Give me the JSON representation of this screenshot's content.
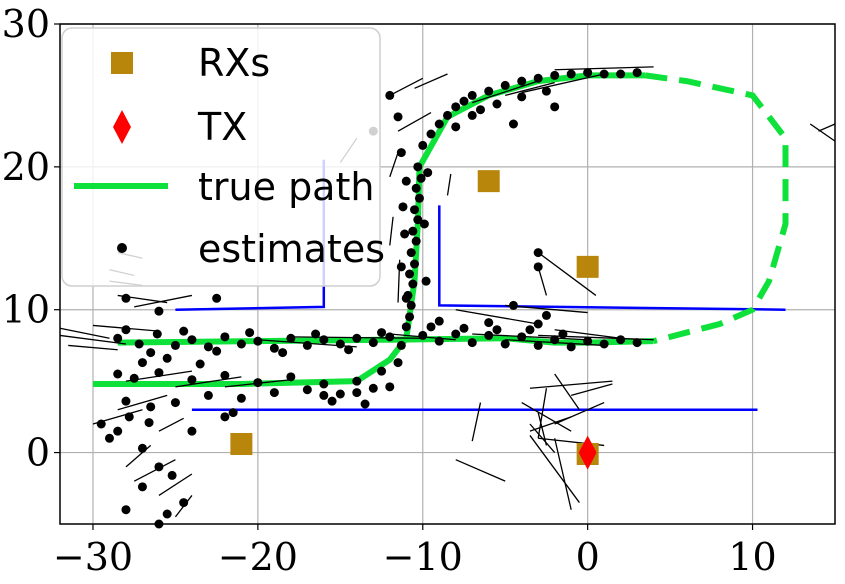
{
  "chart_data": {
    "type": "scatter",
    "xlim": [
      -32,
      15
    ],
    "ylim": [
      -5,
      30
    ],
    "grid": true,
    "legend_position": "top-left",
    "x_ticks": [
      -30,
      -20,
      -10,
      0,
      10
    ],
    "y_ticks": [
      0,
      10,
      20,
      30
    ],
    "x_tick_labels": [
      "−30",
      "−20",
      "−10",
      "0",
      "10"
    ],
    "y_tick_labels": [
      "0",
      "10",
      "20",
      "30"
    ],
    "legend": {
      "rxs": "RXs",
      "tx": "TX",
      "true_path": "true path",
      "estimates": "estimates"
    },
    "colors": {
      "rx": "#b8860b",
      "tx": "#ff0000",
      "true_path": "#0ee13a",
      "estimate": "#000000",
      "walls": "#0000ff",
      "grid": "#b0b0b0"
    },
    "rx_points": [
      [
        -21,
        0.6
      ],
      [
        -6,
        19
      ],
      [
        0,
        13
      ],
      [
        0,
        -0.1
      ]
    ],
    "tx_point": [
      0,
      0
    ],
    "true_path_solid": [
      [
        -30,
        4.8
      ],
      [
        -21,
        4.8
      ],
      [
        -14,
        5
      ],
      [
        -12,
        6.5
      ],
      [
        -11,
        8
      ],
      [
        -10.5,
        12
      ],
      [
        -10.3,
        16
      ],
      [
        -10.2,
        20
      ],
      [
        -8.5,
        23.5
      ],
      [
        -6,
        25
      ],
      [
        -3,
        26
      ],
      [
        0,
        26.4
      ],
      [
        3.5,
        26.4
      ]
    ],
    "true_path_solid_2": [
      [
        -28.5,
        7.7
      ],
      [
        -20,
        7.8
      ],
      [
        -12,
        7.9
      ],
      [
        -5,
        8
      ],
      [
        -2,
        7.7
      ],
      [
        0,
        7.7
      ],
      [
        4,
        7.8
      ]
    ],
    "true_path_dashed": [
      [
        3.5,
        26.4
      ],
      [
        6,
        26
      ],
      [
        10,
        25
      ],
      [
        12,
        22
      ],
      [
        12,
        16
      ],
      [
        11,
        12
      ],
      [
        10,
        10
      ],
      [
        8,
        9
      ],
      [
        4,
        7.8
      ]
    ],
    "walls": [
      [
        [
          -25,
          10
        ],
        [
          -16,
          10.2
        ],
        [
          -16,
          20.5
        ]
      ],
      [
        [
          -9,
          17.3
        ],
        [
          -9,
          10.3
        ],
        [
          12,
          10
        ]
      ],
      [
        [
          -24,
          3
        ],
        [
          10.3,
          3
        ]
      ]
    ],
    "estimate_points": [
      [
        -28.5,
        8.0
      ],
      [
        -27.2,
        7.6
      ],
      [
        -26.1,
        8.3
      ],
      [
        -25.0,
        7.5
      ],
      [
        -24.0,
        7.9
      ],
      [
        -23.0,
        7.4
      ],
      [
        -22.0,
        8.1
      ],
      [
        -21.0,
        7.6
      ],
      [
        -20.0,
        7.8
      ],
      [
        -19.0,
        7.3
      ],
      [
        -18.0,
        8.0
      ],
      [
        -17.0,
        7.5
      ],
      [
        -16.0,
        7.9
      ],
      [
        -15.0,
        7.6
      ],
      [
        -14.0,
        8.0
      ],
      [
        -13.0,
        7.7
      ],
      [
        -12.0,
        8.1
      ],
      [
        -11.3,
        7.5
      ],
      [
        -28.0,
        8.6
      ],
      [
        -26.5,
        7.0
      ],
      [
        -24.5,
        8.5
      ],
      [
        -22.5,
        7.1
      ],
      [
        -20.5,
        8.4
      ],
      [
        -18.5,
        7.0
      ],
      [
        -16.5,
        8.3
      ],
      [
        -14.5,
        7.2
      ],
      [
        -12.5,
        8.4
      ],
      [
        -27.0,
        6.3
      ],
      [
        -25.5,
        6.6
      ],
      [
        -23.5,
        6.2
      ],
      [
        -28.5,
        5.5
      ],
      [
        -27.5,
        5.2
      ],
      [
        -26.0,
        5.6
      ],
      [
        -24.0,
        5.1
      ],
      [
        -22.0,
        5.4
      ],
      [
        -20.0,
        4.9
      ],
      [
        -18.0,
        5.3
      ],
      [
        -16.0,
        4.8
      ],
      [
        -14.0,
        5.0
      ],
      [
        -13.0,
        4.5
      ],
      [
        -12.5,
        5.7
      ],
      [
        -11.5,
        6.3
      ],
      [
        -19.0,
        4.2
      ],
      [
        -17.0,
        4.4
      ],
      [
        -15.0,
        4.1
      ],
      [
        -21.0,
        3.8
      ],
      [
        -23.0,
        4.0
      ],
      [
        -25.0,
        3.5
      ],
      [
        -26.5,
        3.2
      ],
      [
        -28.0,
        3.6
      ],
      [
        -29.5,
        2.0
      ],
      [
        -28.5,
        1.5
      ],
      [
        -27.8,
        2.5
      ],
      [
        -26.6,
        2.1
      ],
      [
        -29.0,
        1.0
      ],
      [
        -27.0,
        0.3
      ],
      [
        -26.0,
        -1.0
      ],
      [
        -25.2,
        -1.6
      ],
      [
        -27.0,
        -2.4
      ],
      [
        -28.0,
        -4.0
      ],
      [
        -26.0,
        -5.0
      ],
      [
        -22.0,
        2.5
      ],
      [
        -24.0,
        1.5
      ],
      [
        -11.0,
        8.8
      ],
      [
        -10.8,
        9.5
      ],
      [
        -10.7,
        10.3
      ],
      [
        -10.9,
        11.0
      ],
      [
        -10.6,
        11.8
      ],
      [
        -10.8,
        12.5
      ],
      [
        -10.5,
        13.2
      ],
      [
        -10.7,
        14.0
      ],
      [
        -10.4,
        14.8
      ],
      [
        -10.6,
        15.5
      ],
      [
        -10.3,
        16.3
      ],
      [
        -10.5,
        17.0
      ],
      [
        -10.2,
        17.8
      ],
      [
        -10.4,
        18.5
      ],
      [
        -10.1,
        19.2
      ],
      [
        -10.3,
        20.0
      ],
      [
        -11.0,
        19.0
      ],
      [
        -11.2,
        17.2
      ],
      [
        -11.1,
        15.3
      ],
      [
        -11.3,
        13.0
      ],
      [
        -11.0,
        10.8
      ],
      [
        -9.8,
        12.0
      ],
      [
        -9.9,
        16.0
      ],
      [
        -9.7,
        19.6
      ],
      [
        -11.3,
        21.0
      ],
      [
        -10.0,
        21.5
      ],
      [
        -9.5,
        22.3
      ],
      [
        -9.0,
        23.0
      ],
      [
        -8.5,
        23.6
      ],
      [
        -8.0,
        24.2
      ],
      [
        -7.5,
        24.6
      ],
      [
        -7.0,
        25.0
      ],
      [
        -6.0,
        25.3
      ],
      [
        -5.0,
        25.7
      ],
      [
        -4.0,
        26.0
      ],
      [
        -3.0,
        26.2
      ],
      [
        -2.0,
        26.4
      ],
      [
        -1.0,
        26.5
      ],
      [
        0.0,
        26.6
      ],
      [
        1.0,
        26.5
      ],
      [
        2.0,
        26.5
      ],
      [
        3.0,
        26.6
      ],
      [
        -8.0,
        22.8
      ],
      [
        -7.0,
        23.6
      ],
      [
        -6.5,
        24.0
      ],
      [
        -5.5,
        24.4
      ],
      [
        -4.0,
        24.9
      ],
      [
        -2.5,
        25.3
      ],
      [
        -12.0,
        25.0
      ],
      [
        -13.0,
        22.5
      ],
      [
        -11.5,
        23.5
      ],
      [
        -4.5,
        23.0
      ],
      [
        -2.0,
        24.2
      ],
      [
        -10.0,
        8.2
      ],
      [
        -9.0,
        7.8
      ],
      [
        -8.0,
        8.3
      ],
      [
        -7.0,
        7.7
      ],
      [
        -6.0,
        8.2
      ],
      [
        -5.0,
        7.6
      ],
      [
        -4.0,
        8.1
      ],
      [
        -3.0,
        7.5
      ],
      [
        -2.0,
        7.9
      ],
      [
        -1.0,
        7.4
      ],
      [
        0.0,
        7.8
      ],
      [
        1.0,
        7.6
      ],
      [
        2.0,
        7.9
      ],
      [
        3.0,
        7.7
      ],
      [
        -9.5,
        8.8
      ],
      [
        -7.5,
        8.7
      ],
      [
        -5.5,
        8.6
      ],
      [
        -3.5,
        8.6
      ],
      [
        -1.5,
        8.3
      ],
      [
        -9.0,
        9.2
      ],
      [
        -6.0,
        9.1
      ],
      [
        -3.0,
        9.0
      ],
      [
        -2.5,
        9.6
      ],
      [
        -4.5,
        10.3
      ],
      [
        -16.0,
        4.0
      ],
      [
        -14.0,
        4.2
      ],
      [
        -12.0,
        4.6
      ],
      [
        -13.5,
        3.4
      ],
      [
        -15.5,
        3.6
      ],
      [
        -21.5,
        2.8
      ],
      [
        -22.5,
        10.8
      ],
      [
        -26.0,
        9.9
      ],
      [
        -28.0,
        10.8
      ],
      [
        -3.0,
        14.0
      ],
      [
        -3.0,
        13.0
      ],
      [
        -25.5,
        -4.3
      ],
      [
        -24.5,
        -3.5
      ]
    ],
    "estimate_segments": [
      [
        [
          -28.5,
          11.0
        ],
        [
          -25.5,
          10.5
        ]
      ],
      [
        [
          -27.5,
          10.2
        ],
        [
          -24.0,
          11.0
        ]
      ],
      [
        [
          -32.0,
          8.2
        ],
        [
          -28.0,
          7.6
        ]
      ],
      [
        [
          -32.0,
          8.7
        ],
        [
          -29.0,
          8.0
        ]
      ],
      [
        [
          -31.5,
          7.5
        ],
        [
          -28.5,
          7.2
        ]
      ],
      [
        [
          -30.0,
          8.9
        ],
        [
          -26.0,
          8.5
        ]
      ],
      [
        [
          -20.0,
          7.9
        ],
        [
          -14.0,
          7.4
        ]
      ],
      [
        [
          -18.0,
          8.1
        ],
        [
          -10.0,
          8.0
        ]
      ],
      [
        [
          -12.0,
          8.3
        ],
        [
          -8.0,
          7.9
        ]
      ],
      [
        [
          -7.0,
          8.3
        ],
        [
          0.0,
          7.9
        ]
      ],
      [
        [
          -5.0,
          7.9
        ],
        [
          1.0,
          7.5
        ]
      ],
      [
        [
          -3.0,
          8.2
        ],
        [
          4.0,
          7.9
        ]
      ],
      [
        [
          -8.0,
          10.0
        ],
        [
          -3.0,
          9.0
        ]
      ],
      [
        [
          -2.0,
          8.6
        ],
        [
          2.0,
          8.0
        ]
      ],
      [
        [
          -28.0,
          5.0
        ],
        [
          -24.0,
          5.7
        ]
      ],
      [
        [
          -25.0,
          4.6
        ],
        [
          -21.0,
          5.3
        ]
      ],
      [
        [
          -22.0,
          4.6
        ],
        [
          -18.0,
          5.1
        ]
      ],
      [
        [
          -30.0,
          2.0
        ],
        [
          -27.0,
          3.0
        ]
      ],
      [
        [
          -28.5,
          3.0
        ],
        [
          -25.5,
          4.0
        ]
      ],
      [
        [
          -26.0,
          1.5
        ],
        [
          -24.5,
          2.4
        ]
      ],
      [
        [
          -28.0,
          -1.0
        ],
        [
          -26.5,
          0.5
        ]
      ],
      [
        [
          -27.5,
          -2.0
        ],
        [
          -25.0,
          -0.5
        ]
      ],
      [
        [
          -26.0,
          -3.0
        ],
        [
          -24.0,
          -1.5
        ]
      ],
      [
        [
          -25.0,
          -4.5
        ],
        [
          -24.0,
          -3.0
        ]
      ],
      [
        [
          -11.5,
          22.5
        ],
        [
          -9.5,
          23.8
        ]
      ],
      [
        [
          -12.0,
          25.0
        ],
        [
          -10.0,
          26.2
        ]
      ],
      [
        [
          -10.5,
          25.5
        ],
        [
          -8.5,
          26.5
        ]
      ],
      [
        [
          -7.0,
          24.5
        ],
        [
          -3.0,
          26.0
        ]
      ],
      [
        [
          -4.0,
          25.2
        ],
        [
          1.0,
          26.5
        ]
      ],
      [
        [
          -2.0,
          26.8
        ],
        [
          4.0,
          27.0
        ]
      ],
      [
        [
          -5.0,
          25.0
        ],
        [
          -2.0,
          25.9
        ]
      ],
      [
        [
          -15.0,
          20.3
        ],
        [
          -14.0,
          22.0
        ]
      ],
      [
        [
          -12.0,
          19.3
        ],
        [
          -11.5,
          21.0
        ]
      ],
      [
        [
          -12.0,
          14.5
        ],
        [
          -11.8,
          16.5
        ]
      ],
      [
        [
          -11.5,
          10.5
        ],
        [
          -11.4,
          13.5
        ]
      ],
      [
        [
          -8.5,
          18.0
        ],
        [
          -8.3,
          19.5
        ]
      ],
      [
        [
          -3.0,
          14.0
        ],
        [
          0.5,
          11.0
        ]
      ],
      [
        [
          -3.0,
          13.0
        ],
        [
          -2.5,
          11.0
        ]
      ],
      [
        [
          -5.0,
          10.3
        ],
        [
          0.0,
          9.8
        ]
      ],
      [
        [
          -2.0,
          5.5
        ],
        [
          -0.5,
          3.0
        ]
      ],
      [
        [
          -4.0,
          3.5
        ],
        [
          -1.0,
          1.5
        ]
      ],
      [
        [
          -3.5,
          2.0
        ],
        [
          -2.0,
          0.0
        ]
      ],
      [
        [
          -2.5,
          4.5
        ],
        [
          -3.0,
          1.0
        ]
      ],
      [
        [
          -6.5,
          3.5
        ],
        [
          -7.0,
          0.8
        ]
      ],
      [
        [
          -2.0,
          2.0
        ],
        [
          1.0,
          3.5
        ]
      ],
      [
        [
          -1.0,
          4.0
        ],
        [
          1.5,
          4.8
        ]
      ],
      [
        [
          -3.5,
          1.5
        ],
        [
          -1.0,
          2.5
        ]
      ],
      [
        [
          -3.0,
          2.8
        ],
        [
          -2.5,
          0.5
        ]
      ],
      [
        [
          -8.0,
          -0.5
        ],
        [
          -5.0,
          -2.0
        ]
      ],
      [
        [
          -3.5,
          1.2
        ],
        [
          -0.5,
          -3.5
        ]
      ],
      [
        [
          -2.0,
          1.0
        ],
        [
          -1.0,
          -4.0
        ]
      ],
      [
        [
          -3.0,
          1.0
        ],
        [
          1.0,
          0.5
        ]
      ],
      [
        [
          -3.5,
          4.5
        ],
        [
          1.5,
          5.0
        ]
      ],
      [
        [
          14.0,
          22.5
        ],
        [
          15.0,
          23.0
        ]
      ],
      [
        [
          13.5,
          23.0
        ],
        [
          15.0,
          21.8
        ]
      ],
      [
        [
          -29.0,
          12.0
        ],
        [
          -27.0,
          11.7
        ]
      ],
      [
        [
          -28.5,
          14.0
        ],
        [
          -27.0,
          13.6
        ]
      ],
      [
        [
          -29.0,
          12.8
        ],
        [
          -27.5,
          12.4
        ]
      ]
    ]
  }
}
